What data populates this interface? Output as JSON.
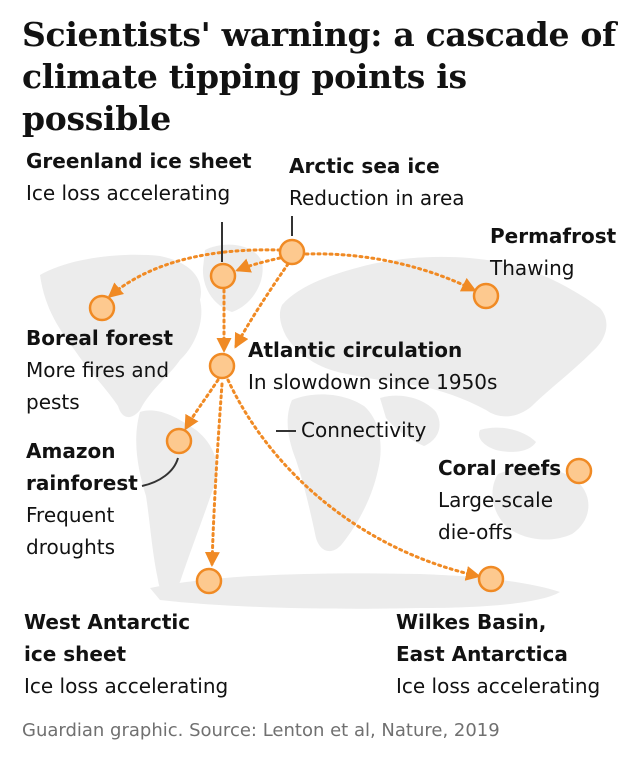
{
  "title_line1": "Scientists' warning: a cascade of",
  "title_line2": "climate tipping points is possible",
  "source": "Guardian graphic. Source: Lenton et al, Nature, 2019",
  "connectivity_label": "Connectivity",
  "colors": {
    "node_fill": "#fdc98f",
    "node_stroke": "#f08a24",
    "land": "#ececec"
  },
  "nodes": {
    "greenland": {
      "name": "Greenland ice sheet",
      "desc": "Ice loss accelerating"
    },
    "arctic": {
      "name": "Arctic sea ice",
      "desc": "Reduction in area"
    },
    "permafrost": {
      "name": "Permafrost",
      "desc": "Thawing"
    },
    "boreal": {
      "name": "Boreal forest",
      "desc1": "More fires and",
      "desc2": "pests"
    },
    "atlantic": {
      "name": "Atlantic circulation",
      "desc": "In slowdown since 1950s"
    },
    "amazon": {
      "name1": "Amazon",
      "name2": "rainforest",
      "desc1": "Frequent",
      "desc2": "droughts"
    },
    "coral": {
      "name": "Coral reefs",
      "desc1": "Large-scale",
      "desc2": "die-offs"
    },
    "west_antarctic": {
      "name1": "West Antarctic",
      "name2": "ice sheet",
      "desc": "Ice loss accelerating"
    },
    "wilkes": {
      "name1": "Wilkes Basin,",
      "name2": "East Antarctica",
      "desc": "Ice loss accelerating"
    }
  }
}
